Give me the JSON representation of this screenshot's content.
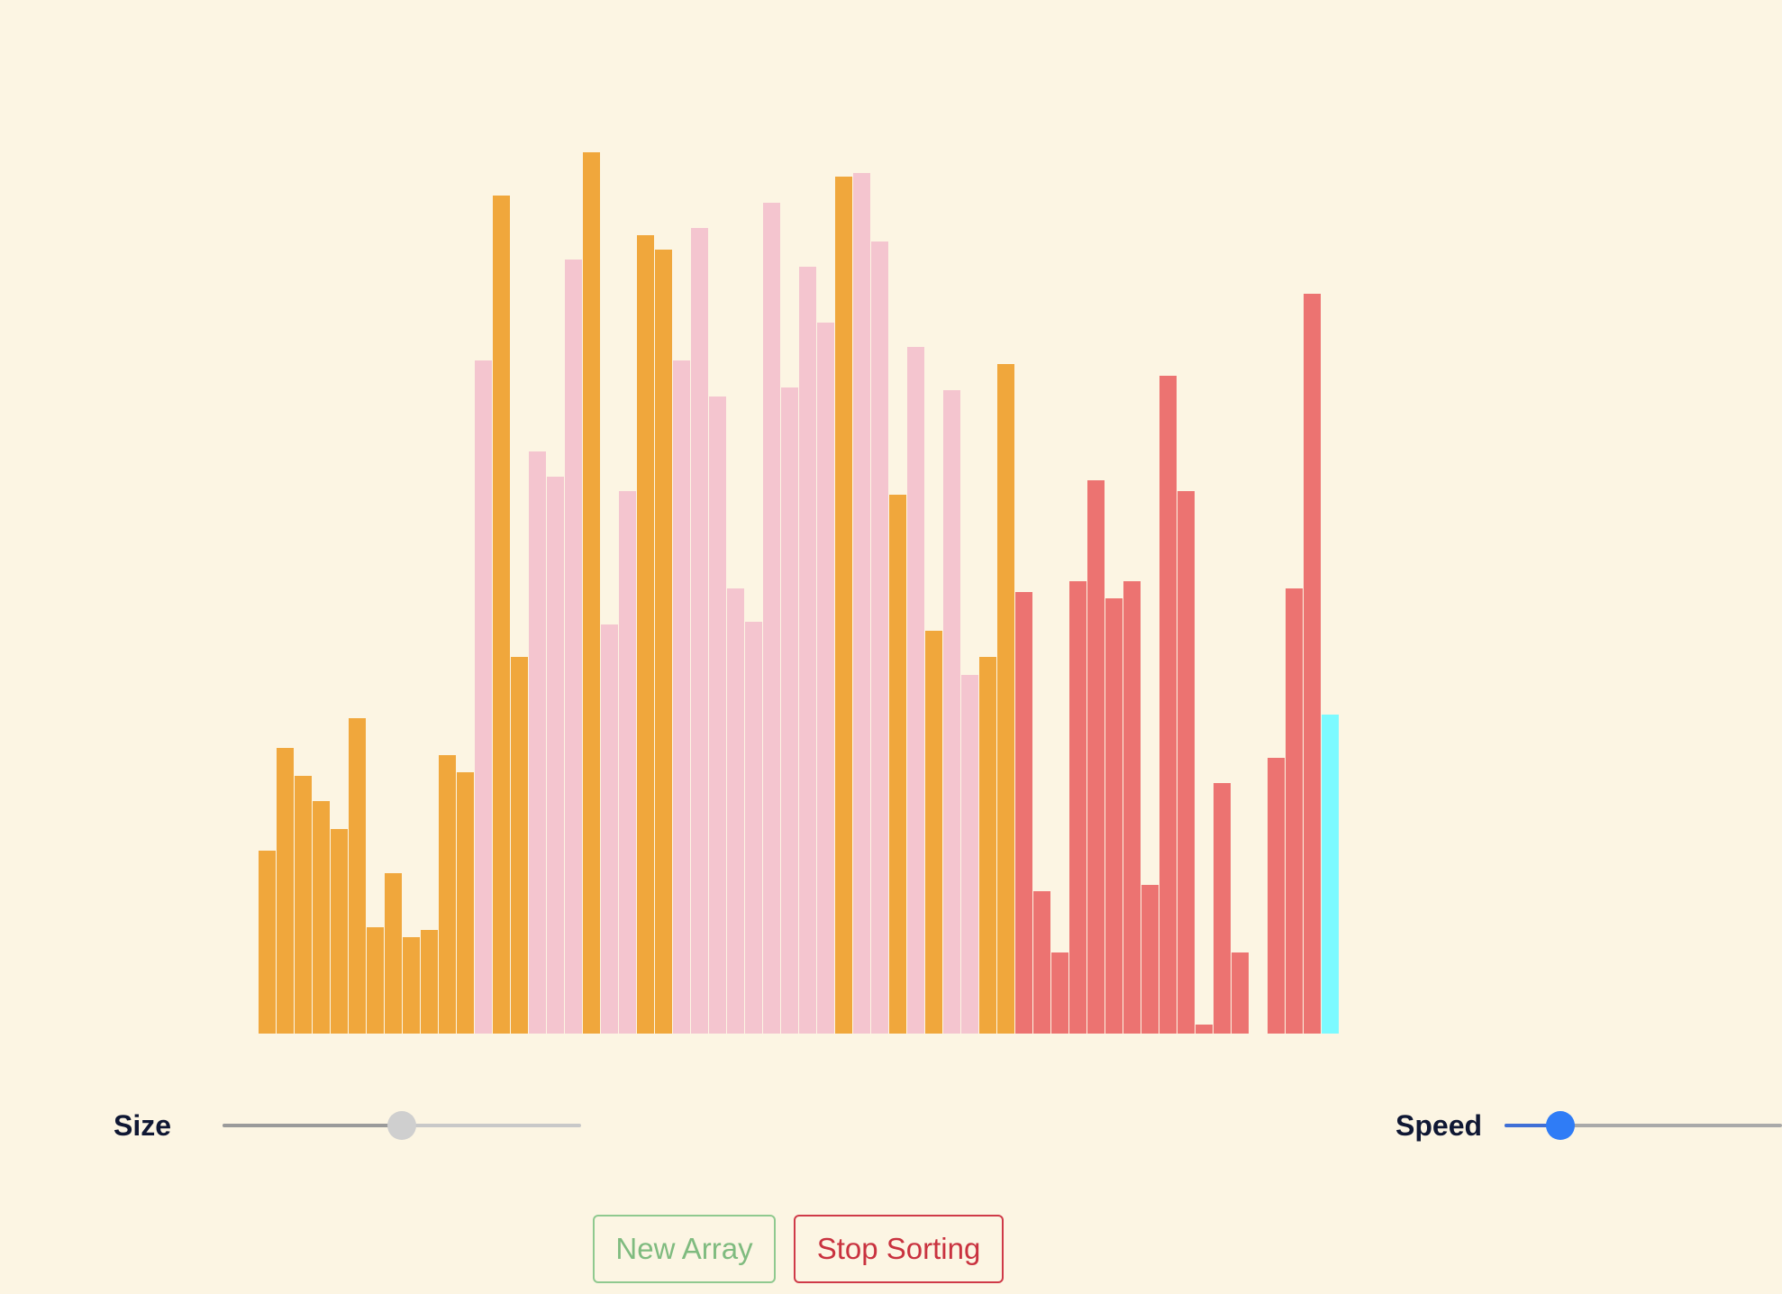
{
  "controls": {
    "size_label": "Size",
    "speed_label": "Speed",
    "size_value": 0.5,
    "speed_value": 0.2,
    "new_array_label": "New Array",
    "stop_sorting_label": "Stop Sorting"
  },
  "colors": {
    "background": "#fcf5e3",
    "orange": "#f0a73c",
    "pink": "#f4c5cf",
    "red": "#ec7371",
    "cyan": "#7cfaff",
    "size_thumb": "#cfcfcf",
    "speed_thumb": "#2f7cf6"
  },
  "array": {
    "max_value": 1000,
    "bars": [
      {
        "value": 207,
        "state": "orange"
      },
      {
        "value": 324,
        "state": "orange"
      },
      {
        "value": 292,
        "state": "orange"
      },
      {
        "value": 264,
        "state": "orange"
      },
      {
        "value": 232,
        "state": "orange"
      },
      {
        "value": 357,
        "state": "orange"
      },
      {
        "value": 121,
        "state": "orange"
      },
      {
        "value": 182,
        "state": "orange"
      },
      {
        "value": 109,
        "state": "orange"
      },
      {
        "value": 117,
        "state": "orange"
      },
      {
        "value": 316,
        "state": "orange"
      },
      {
        "value": 296,
        "state": "orange"
      },
      {
        "value": 763,
        "state": "pink"
      },
      {
        "value": 950,
        "state": "orange"
      },
      {
        "value": 427,
        "state": "orange"
      },
      {
        "value": 660,
        "state": "pink"
      },
      {
        "value": 631,
        "state": "pink"
      },
      {
        "value": 877,
        "state": "pink"
      },
      {
        "value": 999,
        "state": "orange"
      },
      {
        "value": 464,
        "state": "pink"
      },
      {
        "value": 615,
        "state": "pink"
      },
      {
        "value": 905,
        "state": "orange"
      },
      {
        "value": 889,
        "state": "orange"
      },
      {
        "value": 763,
        "state": "pink"
      },
      {
        "value": 913,
        "state": "pink"
      },
      {
        "value": 722,
        "state": "pink"
      },
      {
        "value": 505,
        "state": "pink"
      },
      {
        "value": 467,
        "state": "pink"
      },
      {
        "value": 942,
        "state": "pink"
      },
      {
        "value": 732,
        "state": "pink"
      },
      {
        "value": 869,
        "state": "pink"
      },
      {
        "value": 806,
        "state": "pink"
      },
      {
        "value": 971,
        "state": "orange"
      },
      {
        "value": 975,
        "state": "pink"
      },
      {
        "value": 898,
        "state": "pink"
      },
      {
        "value": 611,
        "state": "orange"
      },
      {
        "value": 778,
        "state": "pink"
      },
      {
        "value": 457,
        "state": "orange"
      },
      {
        "value": 729,
        "state": "pink"
      },
      {
        "value": 407,
        "state": "pink"
      },
      {
        "value": 427,
        "state": "orange"
      },
      {
        "value": 759,
        "state": "orange"
      },
      {
        "value": 501,
        "state": "red"
      },
      {
        "value": 161,
        "state": "red"
      },
      {
        "value": 92,
        "state": "red"
      },
      {
        "value": 513,
        "state": "red"
      },
      {
        "value": 627,
        "state": "red"
      },
      {
        "value": 493,
        "state": "red"
      },
      {
        "value": 513,
        "state": "red"
      },
      {
        "value": 169,
        "state": "red"
      },
      {
        "value": 746,
        "state": "red"
      },
      {
        "value": 615,
        "state": "red"
      },
      {
        "value": 10,
        "state": "red"
      },
      {
        "value": 284,
        "state": "red"
      },
      {
        "value": 92,
        "state": "red"
      },
      {
        "value": 0,
        "state": "red"
      },
      {
        "value": 313,
        "state": "red"
      },
      {
        "value": 505,
        "state": "red"
      },
      {
        "value": 839,
        "state": "red"
      },
      {
        "value": 362,
        "state": "cyan"
      }
    ]
  }
}
